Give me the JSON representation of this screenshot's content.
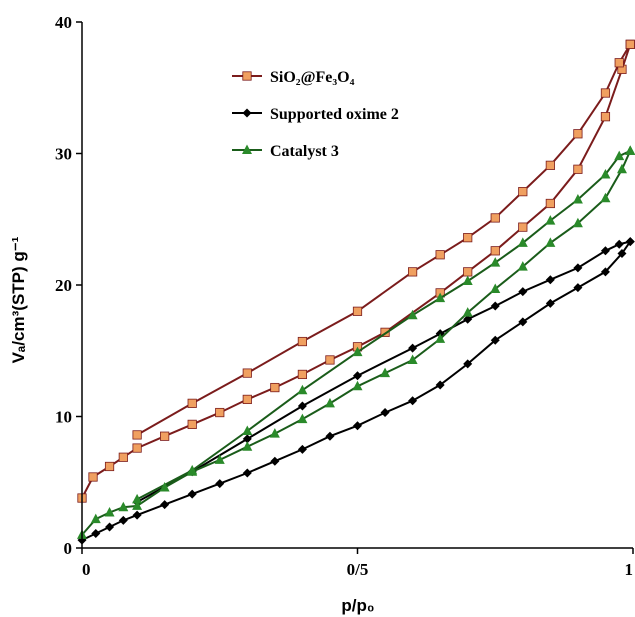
{
  "chart_data": {
    "type": "line",
    "xlabel": "p/p₀",
    "ylabel": "Vₐ/cm³(STP) g⁻¹",
    "xlim": [
      0,
      1
    ],
    "ylim": [
      0,
      40
    ],
    "x_ticks": [
      0,
      0.5,
      1
    ],
    "x_tick_labels": [
      "0",
      "0/5",
      "1"
    ],
    "y_ticks": [
      0,
      10,
      20,
      30,
      40
    ],
    "y_tick_labels": [
      "0",
      "10",
      "20",
      "30",
      "40"
    ],
    "grid": false,
    "legend_position": "top-left",
    "series": [
      {
        "name": "SiO₂@Fe₃O₄",
        "color": "#7b1c1c",
        "marker": "square",
        "marker_color": "#f0a060",
        "adsorption": [
          [
            0.0,
            3.8
          ],
          [
            0.02,
            5.4
          ],
          [
            0.05,
            6.2
          ],
          [
            0.075,
            6.9
          ],
          [
            0.1,
            7.6
          ],
          [
            0.15,
            8.5
          ],
          [
            0.2,
            9.4
          ],
          [
            0.25,
            10.3
          ],
          [
            0.3,
            11.3
          ],
          [
            0.35,
            12.2
          ],
          [
            0.4,
            13.2
          ],
          [
            0.45,
            14.3
          ],
          [
            0.5,
            15.3
          ],
          [
            0.55,
            16.4
          ],
          [
            0.65,
            19.4
          ],
          [
            0.7,
            21.0
          ],
          [
            0.75,
            22.6
          ],
          [
            0.8,
            24.4
          ],
          [
            0.85,
            26.2
          ],
          [
            0.9,
            28.8
          ],
          [
            0.95,
            32.8
          ],
          [
            0.98,
            36.4
          ],
          [
            0.995,
            38.3
          ]
        ],
        "desorption": [
          [
            0.995,
            38.3
          ],
          [
            0.975,
            36.9
          ],
          [
            0.95,
            34.6
          ],
          [
            0.9,
            31.5
          ],
          [
            0.85,
            29.1
          ],
          [
            0.8,
            27.1
          ],
          [
            0.75,
            25.1
          ],
          [
            0.7,
            23.6
          ],
          [
            0.65,
            22.3
          ],
          [
            0.6,
            21.0
          ],
          [
            0.5,
            18.0
          ],
          [
            0.4,
            15.7
          ],
          [
            0.3,
            13.3
          ],
          [
            0.2,
            11.0
          ],
          [
            0.1,
            8.6
          ]
        ]
      },
      {
        "name": "Supported oxime 2",
        "color": "#000000",
        "marker": "diamond",
        "marker_color": "#000000",
        "adsorption": [
          [
            0.0,
            0.6
          ],
          [
            0.025,
            1.1
          ],
          [
            0.05,
            1.6
          ],
          [
            0.075,
            2.1
          ],
          [
            0.1,
            2.5
          ],
          [
            0.15,
            3.3
          ],
          [
            0.2,
            4.1
          ],
          [
            0.25,
            4.9
          ],
          [
            0.3,
            5.7
          ],
          [
            0.35,
            6.6
          ],
          [
            0.4,
            7.5
          ],
          [
            0.45,
            8.5
          ],
          [
            0.5,
            9.3
          ],
          [
            0.55,
            10.3
          ],
          [
            0.6,
            11.2
          ],
          [
            0.65,
            12.4
          ],
          [
            0.7,
            14.0
          ],
          [
            0.75,
            15.8
          ],
          [
            0.8,
            17.2
          ],
          [
            0.85,
            18.6
          ],
          [
            0.9,
            19.8
          ],
          [
            0.95,
            21.0
          ],
          [
            0.98,
            22.4
          ],
          [
            0.995,
            23.3
          ]
        ],
        "desorption": [
          [
            0.995,
            23.3
          ],
          [
            0.975,
            23.1
          ],
          [
            0.95,
            22.6
          ],
          [
            0.9,
            21.3
          ],
          [
            0.85,
            20.4
          ],
          [
            0.8,
            19.5
          ],
          [
            0.75,
            18.4
          ],
          [
            0.7,
            17.4
          ],
          [
            0.65,
            16.3
          ],
          [
            0.6,
            15.2
          ],
          [
            0.5,
            13.1
          ],
          [
            0.4,
            10.8
          ],
          [
            0.3,
            8.3
          ],
          [
            0.2,
            5.8
          ],
          [
            0.1,
            3.5
          ]
        ]
      },
      {
        "name": "Catalyst 3",
        "color": "#1a5c1a",
        "marker": "triangle",
        "marker_color": "#2a8a2a",
        "adsorption": [
          [
            0.0,
            1.0
          ],
          [
            0.025,
            2.2
          ],
          [
            0.05,
            2.7
          ],
          [
            0.075,
            3.1
          ],
          [
            0.1,
            3.2
          ],
          [
            0.15,
            4.6
          ],
          [
            0.2,
            5.8
          ],
          [
            0.25,
            6.7
          ],
          [
            0.3,
            7.7
          ],
          [
            0.35,
            8.7
          ],
          [
            0.4,
            9.8
          ],
          [
            0.45,
            11.0
          ],
          [
            0.5,
            12.3
          ],
          [
            0.55,
            13.3
          ],
          [
            0.6,
            14.3
          ],
          [
            0.65,
            15.9
          ],
          [
            0.7,
            17.9
          ],
          [
            0.75,
            19.7
          ],
          [
            0.8,
            21.4
          ],
          [
            0.85,
            23.2
          ],
          [
            0.9,
            24.7
          ],
          [
            0.95,
            26.6
          ],
          [
            0.98,
            28.8
          ],
          [
            0.995,
            30.2
          ]
        ],
        "desorption": [
          [
            0.995,
            30.2
          ],
          [
            0.975,
            29.8
          ],
          [
            0.95,
            28.4
          ],
          [
            0.9,
            26.5
          ],
          [
            0.85,
            24.9
          ],
          [
            0.8,
            23.2
          ],
          [
            0.75,
            21.7
          ],
          [
            0.7,
            20.3
          ],
          [
            0.65,
            19.0
          ],
          [
            0.6,
            17.7
          ],
          [
            0.5,
            14.9
          ],
          [
            0.4,
            12.0
          ],
          [
            0.3,
            8.9
          ],
          [
            0.2,
            5.9
          ],
          [
            0.1,
            3.7
          ]
        ]
      }
    ]
  }
}
